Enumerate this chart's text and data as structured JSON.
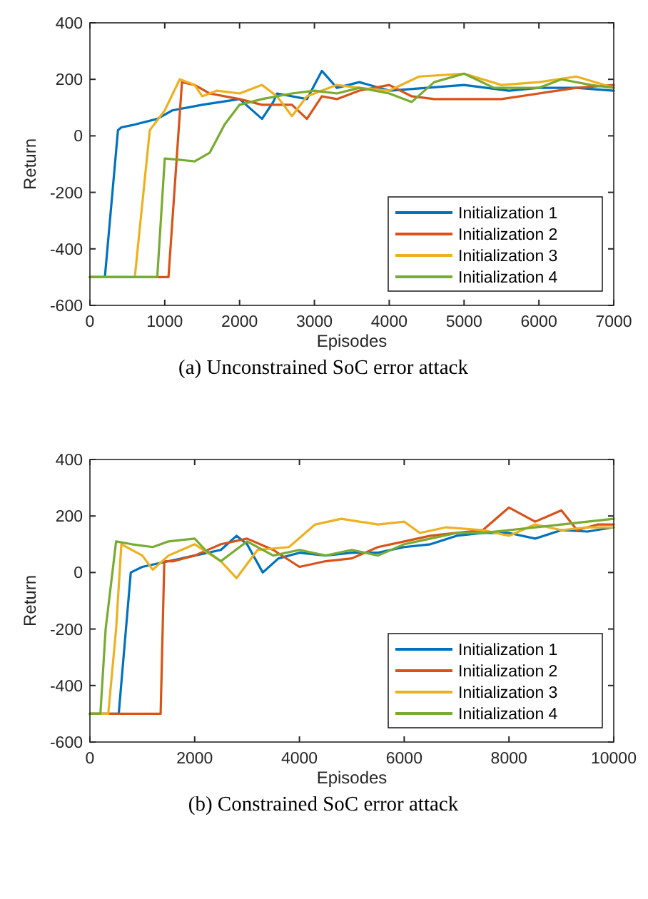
{
  "chart_data": [
    {
      "type": "line",
      "title": "(a) Unconstrained SoC error attack",
      "xlabel": "Episodes",
      "ylabel": "Return",
      "xlim": [
        0,
        7000
      ],
      "xticks": [
        0,
        1000,
        2000,
        3000,
        4000,
        5000,
        6000,
        7000
      ],
      "ylim": [
        -600,
        400
      ],
      "yticks": [
        -600,
        -400,
        -200,
        0,
        200,
        400
      ],
      "grid": false,
      "legend": "bottom right",
      "marker": "none",
      "line_style": "solid",
      "series": [
        {
          "name": "Initialization 1",
          "color": "#0072bd",
          "x": [
            0,
            200,
            375,
            420,
            600,
            900,
            1100,
            1500,
            2000,
            2300,
            2450,
            2500,
            2900,
            3100,
            3300,
            3600,
            4000,
            4500,
            5000,
            5300,
            5600,
            6000,
            6500,
            7000
          ],
          "values": [
            -500,
            -500,
            20,
            30,
            40,
            60,
            90,
            110,
            130,
            60,
            120,
            150,
            130,
            230,
            170,
            190,
            160,
            170,
            180,
            170,
            160,
            170,
            170,
            160
          ]
        },
        {
          "name": "Initialization 2",
          "color": "#d95319",
          "x": [
            0,
            1050,
            1230,
            1400,
            1600,
            2000,
            2300,
            2700,
            2900,
            3100,
            3300,
            3600,
            4000,
            4300,
            4600,
            5000,
            5500,
            6000,
            6500,
            7000
          ],
          "values": [
            -500,
            -500,
            190,
            180,
            150,
            130,
            110,
            110,
            60,
            140,
            130,
            160,
            180,
            140,
            130,
            130,
            130,
            150,
            170,
            180
          ]
        },
        {
          "name": "Initialization 3",
          "color": "#edb120",
          "x": [
            0,
            600,
            800,
            1000,
            1200,
            1400,
            1500,
            1700,
            2000,
            2300,
            2500,
            2700,
            2900,
            3300,
            3600,
            4000,
            4400,
            5000,
            5500,
            6000,
            6500,
            7000
          ],
          "values": [
            -500,
            -500,
            20,
            90,
            200,
            180,
            140,
            160,
            150,
            180,
            140,
            70,
            140,
            180,
            170,
            160,
            210,
            220,
            180,
            190,
            210,
            170
          ]
        },
        {
          "name": "Initialization 4",
          "color": "#77ac30",
          "x": [
            0,
            900,
            1000,
            1400,
            1600,
            1800,
            2000,
            2300,
            2700,
            3000,
            3300,
            3600,
            4000,
            4300,
            4600,
            5000,
            5400,
            6000,
            6300,
            6700,
            7000
          ],
          "values": [
            -500,
            -500,
            -80,
            -90,
            -60,
            40,
            110,
            130,
            150,
            160,
            150,
            170,
            150,
            120,
            190,
            220,
            170,
            170,
            200,
            180,
            170
          ]
        }
      ]
    },
    {
      "type": "line",
      "title": "(b) Constrained SoC error attack",
      "xlabel": "Episodes",
      "ylabel": "Return",
      "xlim": [
        0,
        10000
      ],
      "xticks": [
        0,
        2000,
        4000,
        6000,
        8000,
        10000
      ],
      "ylim": [
        -600,
        400
      ],
      "yticks": [
        -600,
        -400,
        -200,
        0,
        200,
        400
      ],
      "grid": false,
      "legend": "bottom right",
      "marker": "none",
      "line_style": "solid",
      "series": [
        {
          "name": "Initialization 1",
          "color": "#0072bd",
          "x": [
            0,
            550,
            780,
            1000,
            1500,
            2000,
            2500,
            2800,
            3000,
            3300,
            3600,
            4000,
            4500,
            5000,
            5500,
            6000,
            6500,
            7000,
            7500,
            8000,
            8500,
            9000,
            9500,
            10000
          ],
          "values": [
            -500,
            -500,
            0,
            20,
            40,
            60,
            80,
            130,
            100,
            0,
            50,
            70,
            60,
            70,
            70,
            90,
            100,
            130,
            140,
            140,
            120,
            150,
            145,
            160
          ]
        },
        {
          "name": "Initialization 2",
          "color": "#d95319",
          "x": [
            0,
            1350,
            1420,
            1600,
            2000,
            2500,
            3000,
            3500,
            4000,
            4500,
            5000,
            5500,
            6000,
            6500,
            7000,
            7500,
            8000,
            8500,
            9000,
            9300,
            9700,
            10000
          ],
          "values": [
            -500,
            -500,
            40,
            40,
            60,
            100,
            120,
            80,
            20,
            40,
            50,
            90,
            110,
            130,
            140,
            150,
            230,
            180,
            220,
            150,
            170,
            170
          ]
        },
        {
          "name": "Initialization 3",
          "color": "#edb120",
          "x": [
            0,
            350,
            500,
            600,
            1000,
            1200,
            1500,
            2000,
            2500,
            2800,
            3200,
            3800,
            4300,
            4800,
            5500,
            6000,
            6300,
            6800,
            7500,
            8000,
            8500,
            9000,
            9500,
            10000
          ],
          "values": [
            -500,
            -500,
            -200,
            100,
            60,
            10,
            60,
            100,
            40,
            -20,
            80,
            90,
            170,
            190,
            170,
            180,
            140,
            160,
            150,
            130,
            170,
            150,
            160,
            160
          ]
        },
        {
          "name": "Initialization 4",
          "color": "#77ac30",
          "x": [
            0,
            200,
            300,
            500,
            800,
            1200,
            1500,
            2000,
            2200,
            2500,
            3000,
            3500,
            4000,
            4500,
            5000,
            5500,
            6000,
            6500,
            7000,
            7500,
            8000,
            8500,
            9000,
            9500,
            10000
          ],
          "values": [
            -500,
            -500,
            -200,
            110,
            100,
            90,
            110,
            120,
            80,
            40,
            110,
            60,
            80,
            60,
            80,
            60,
            100,
            120,
            140,
            140,
            150,
            160,
            170,
            180,
            190
          ]
        }
      ]
    }
  ]
}
